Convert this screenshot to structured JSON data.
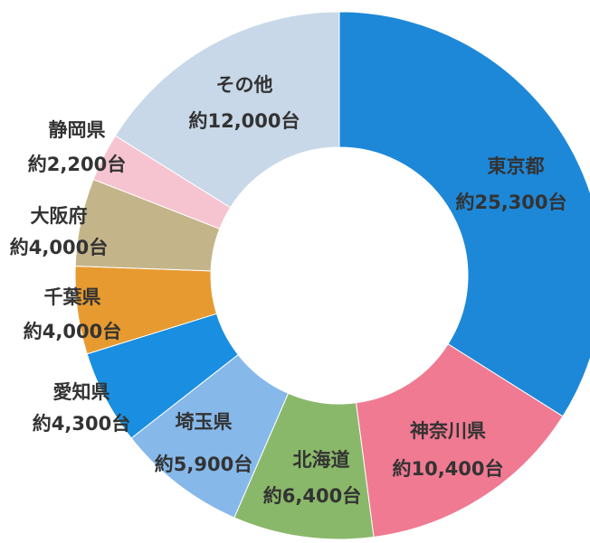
{
  "chart_data": {
    "type": "donut",
    "categories": [
      "東京都",
      "神奈川県",
      "北海道",
      "埼玉県",
      "愛知県",
      "千葉県",
      "大阪府",
      "静岡県",
      "その他"
    ],
    "values": [
      25300,
      10400,
      6400,
      5900,
      4300,
      4000,
      4000,
      2200,
      12000
    ],
    "value_labels": [
      "約25,300台",
      "約10,400台",
      "約6,400台",
      "約5,900台",
      "約4,300台",
      "約4,000台",
      "約4,000台",
      "約2,200台",
      "約12,000台"
    ],
    "colors": [
      "#1e88d8",
      "#f07a92",
      "#8ab86a",
      "#86b8ea",
      "#1a8ee0",
      "#e69a30",
      "#c4b48a",
      "#f5c4d0",
      "#c8d8e8"
    ]
  }
}
